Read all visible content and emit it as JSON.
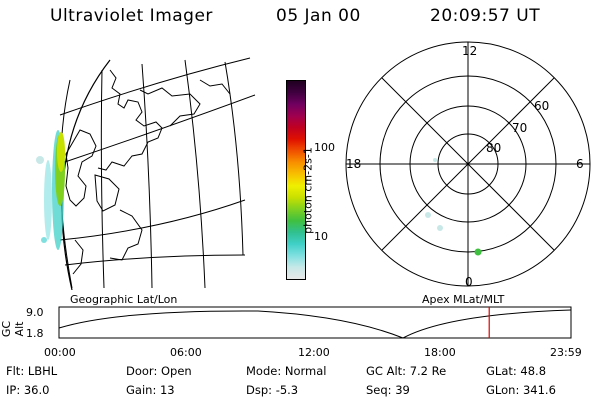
{
  "header": {
    "title": "Ultraviolet Imager",
    "date": "05 Jan 00",
    "time": "20:09:57 UT"
  },
  "colorbar": {
    "unit": "photon cm-2s-1",
    "ticks": [
      "100",
      "10"
    ],
    "colors": [
      "#e8e8e8",
      "#c8e8e8",
      "#80e0e0",
      "#40d0c8",
      "#30c090",
      "#40c040",
      "#80d020",
      "#c8e000",
      "#f0f000",
      "#f8c000",
      "#f89000",
      "#f05000",
      "#e01000",
      "#c00020",
      "#a00050",
      "#700060",
      "#400040",
      "#200020"
    ]
  },
  "left_panel": {
    "label": "Geographic Lat/Lon"
  },
  "right_panel": {
    "label": "Apex MLat/MLT",
    "mlt_labels": {
      "top": "12",
      "left": "18",
      "right": "6",
      "bottom": "0"
    },
    "lat_labels": [
      "60",
      "70",
      "80"
    ]
  },
  "timeline": {
    "axis_label": "GC Alt",
    "y_ticks": [
      "9.0",
      "1.8"
    ],
    "x_ticks": [
      "00:00",
      "06:00",
      "12:00",
      "18:00",
      "23:59"
    ],
    "marker_color": "#e00000",
    "marker_time_hours": 20.166
  },
  "info": {
    "row1": [
      {
        "k": "Flt:",
        "v": "LBHL"
      },
      {
        "k": "Door:",
        "v": "Open"
      },
      {
        "k": "Mode:",
        "v": "Normal"
      },
      {
        "k": "GC Alt:",
        "v": "7.2 Re"
      },
      {
        "k": "GLat:",
        "v": "48.8"
      }
    ],
    "row2": [
      {
        "k": "IP:",
        "v": "36.0"
      },
      {
        "k": "Gain:",
        "v": "13"
      },
      {
        "k": "Dsp:",
        "v": "-5.3"
      },
      {
        "k": "Seq:",
        "v": "39"
      },
      {
        "k": "GLon:",
        "v": "341.6"
      }
    ]
  }
}
